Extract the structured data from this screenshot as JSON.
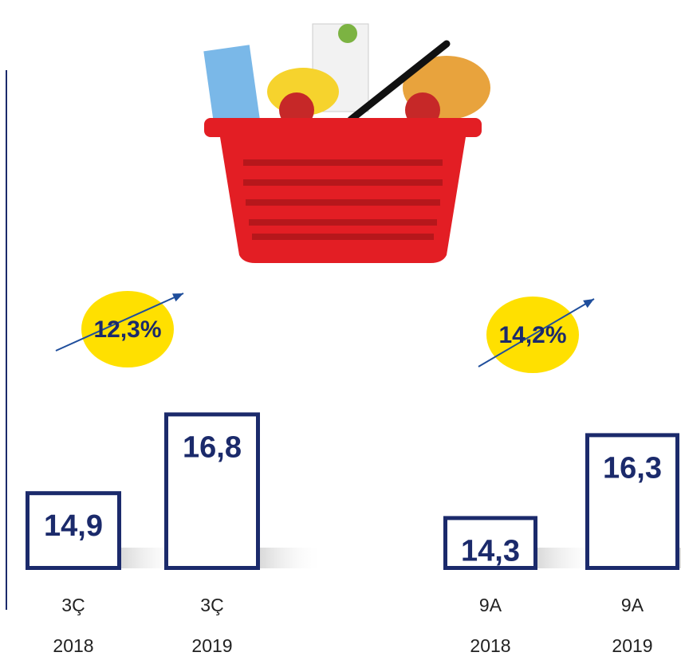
{
  "chart_data": [
    {
      "type": "bar",
      "categories": [
        "3Ç",
        "3Ç"
      ],
      "years": [
        "2018",
        "2019"
      ],
      "values": [
        14.9,
        16.8
      ],
      "value_labels": [
        "14,9",
        "16,8"
      ],
      "annotation": "12,3%",
      "ylim": [
        13,
        17
      ],
      "color": "#1b2a6b"
    },
    {
      "type": "bar",
      "categories": [
        "9A",
        "9A"
      ],
      "years": [
        "2018",
        "2019"
      ],
      "values": [
        14.3,
        16.3
      ],
      "value_labels": [
        "14,3",
        "16,3"
      ],
      "annotation": "14,2%",
      "ylim": [
        13,
        17
      ],
      "color": "#1b2a6b"
    }
  ]
}
